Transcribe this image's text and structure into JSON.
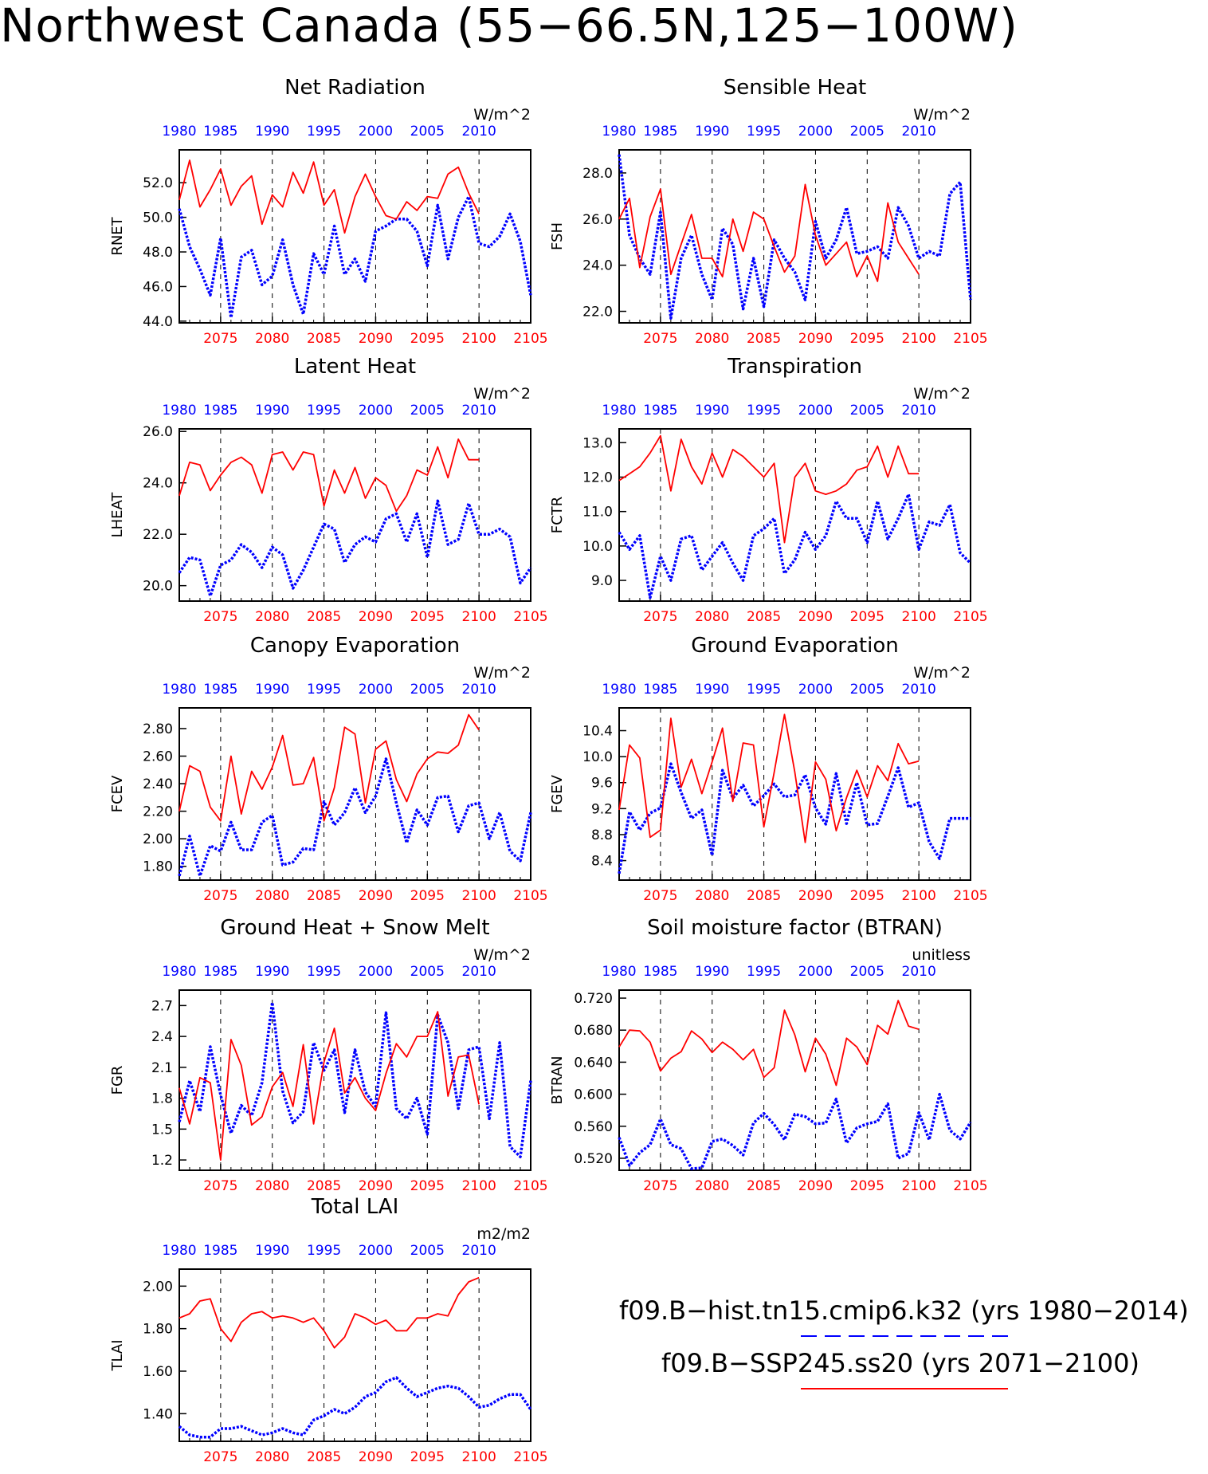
{
  "title": "Northwest Canada (55−66.5N,125−100W)",
  "colors": {
    "hist": "#0000ff",
    "future": "#ff0000",
    "axis": "#000000"
  },
  "legend": [
    {
      "label": "f09.B−hist.tn15.cmip6.k32 (yrs 1980−2014)",
      "color": "#0000ff",
      "style": "dashed"
    },
    {
      "label": "f09.B−SSP245.ss20 (yrs 2071−2100)",
      "color": "#ff0000",
      "style": "solid"
    }
  ],
  "chart_data": [
    {
      "type": "line",
      "title": "Net Radiation",
      "ylabel": "RNET",
      "units": "W/m^2",
      "top_ticks": [
        "1980",
        "1985",
        "1990",
        "1995",
        "2000",
        "2005",
        "2010"
      ],
      "bottom_ticks": [
        "2075",
        "2080",
        "2085",
        "2090",
        "2095",
        "2100",
        "2105"
      ],
      "yticks": [
        "44.0",
        "46.0",
        "48.0",
        "50.0",
        "52.0"
      ],
      "ylim": [
        43.9,
        53.9
      ],
      "series": [
        {
          "role": "hist",
          "x_start": 1980,
          "values": [
            50.5,
            48.3,
            47.0,
            45.5,
            48.8,
            44.2,
            47.7,
            48.1,
            46.1,
            46.6,
            48.7,
            46.1,
            44.4,
            47.9,
            46.7,
            49.5,
            46.7,
            47.6,
            46.3,
            49.2,
            49.5,
            49.9,
            49.9,
            49.2,
            47.2,
            50.7,
            47.6,
            50.0,
            51.2,
            48.5,
            48.3,
            48.9,
            50.2,
            48.6,
            45.5
          ]
        },
        {
          "role": "future",
          "x_start": 2071,
          "values": [
            51.0,
            53.3,
            50.6,
            51.6,
            52.8,
            50.7,
            51.8,
            52.4,
            49.6,
            51.3,
            50.6,
            52.6,
            51.4,
            53.2,
            50.7,
            51.6,
            49.1,
            51.2,
            52.5,
            51.2,
            50.1,
            49.9,
            50.9,
            50.4,
            51.2,
            51.1,
            52.5,
            52.9,
            51.4,
            50.2
          ]
        }
      ]
    },
    {
      "type": "line",
      "title": "Sensible Heat",
      "ylabel": "FSH",
      "units": "W/m^2",
      "top_ticks": [
        "1980",
        "1985",
        "1990",
        "1995",
        "2000",
        "2005",
        "2010"
      ],
      "bottom_ticks": [
        "2075",
        "2080",
        "2085",
        "2090",
        "2095",
        "2100",
        "2105"
      ],
      "yticks": [
        "22.0",
        "24.0",
        "26.0",
        "28.0"
      ],
      "ylim": [
        21.5,
        29.0
      ],
      "series": [
        {
          "role": "hist",
          "x_start": 1980,
          "values": [
            28.8,
            25.3,
            24.3,
            23.6,
            26.3,
            21.7,
            24.3,
            25.3,
            23.6,
            22.5,
            25.6,
            24.9,
            22.1,
            24.3,
            22.2,
            25.1,
            24.3,
            23.7,
            22.5,
            25.9,
            24.3,
            25.1,
            26.5,
            24.5,
            24.6,
            24.8,
            24.3,
            26.5,
            25.7,
            24.3,
            24.6,
            24.4,
            27.1,
            27.6,
            22.5
          ]
        },
        {
          "role": "future",
          "x_start": 2071,
          "values": [
            26.0,
            26.9,
            23.9,
            26.1,
            27.3,
            23.6,
            24.9,
            26.2,
            24.3,
            24.3,
            23.5,
            26.0,
            24.6,
            26.3,
            26.0,
            24.8,
            23.7,
            24.4,
            27.5,
            25.3,
            24.0,
            24.5,
            25.0,
            23.5,
            24.4,
            23.3,
            26.7,
            25.0,
            24.3,
            23.6
          ]
        }
      ]
    },
    {
      "type": "line",
      "title": "Latent Heat",
      "ylabel": "LHEAT",
      "units": "W/m^2",
      "top_ticks": [
        "1980",
        "1985",
        "1990",
        "1995",
        "2000",
        "2005",
        "2010"
      ],
      "bottom_ticks": [
        "2075",
        "2080",
        "2085",
        "2090",
        "2095",
        "2100",
        "2105"
      ],
      "yticks": [
        "20.0",
        "22.0",
        "24.0",
        "26.0"
      ],
      "ylim": [
        19.4,
        26.1
      ],
      "series": [
        {
          "role": "hist",
          "x_start": 1980,
          "values": [
            20.5,
            21.1,
            21.0,
            19.6,
            20.8,
            21.0,
            21.6,
            21.3,
            20.7,
            21.5,
            21.2,
            19.9,
            20.6,
            21.5,
            22.4,
            22.2,
            20.9,
            21.6,
            21.9,
            21.7,
            22.6,
            22.8,
            21.7,
            22.8,
            21.1,
            23.3,
            21.6,
            21.8,
            23.2,
            22.0,
            22.0,
            22.2,
            21.9,
            20.1,
            20.7
          ]
        },
        {
          "role": "future",
          "x_start": 2071,
          "values": [
            23.5,
            24.8,
            24.7,
            23.7,
            24.3,
            24.8,
            25.0,
            24.7,
            23.6,
            25.1,
            25.2,
            24.5,
            25.2,
            25.1,
            23.1,
            24.5,
            23.6,
            24.6,
            23.4,
            24.2,
            23.9,
            22.9,
            23.5,
            24.5,
            24.3,
            25.4,
            24.2,
            25.7,
            24.9,
            24.9
          ]
        }
      ]
    },
    {
      "type": "line",
      "title": "Transpiration",
      "ylabel": "FCTR",
      "units": "W/m^2",
      "top_ticks": [
        "1980",
        "1985",
        "1990",
        "1995",
        "2000",
        "2005",
        "2010"
      ],
      "bottom_ticks": [
        "2075",
        "2080",
        "2085",
        "2090",
        "2095",
        "2100",
        "2105"
      ],
      "yticks": [
        "9.0",
        "10.0",
        "11.0",
        "12.0",
        "13.0"
      ],
      "ylim": [
        8.4,
        13.4
      ],
      "series": [
        {
          "role": "hist",
          "x_start": 1980,
          "values": [
            10.4,
            9.9,
            10.3,
            8.5,
            9.7,
            9.0,
            10.2,
            10.3,
            9.3,
            9.7,
            10.1,
            9.5,
            9.0,
            10.3,
            10.5,
            10.8,
            9.2,
            9.6,
            10.4,
            9.9,
            10.3,
            11.3,
            10.8,
            10.8,
            10.1,
            11.3,
            10.2,
            10.8,
            11.5,
            9.9,
            10.7,
            10.6,
            11.2,
            9.8,
            9.5
          ]
        },
        {
          "role": "future",
          "x_start": 2071,
          "values": [
            11.9,
            12.1,
            12.3,
            12.7,
            13.2,
            11.6,
            13.1,
            12.3,
            11.8,
            12.7,
            12.0,
            12.8,
            12.6,
            12.3,
            12.0,
            12.4,
            10.1,
            12.0,
            12.4,
            11.6,
            11.5,
            11.6,
            11.8,
            12.2,
            12.3,
            12.9,
            12.0,
            12.9,
            12.1,
            12.1
          ]
        }
      ]
    },
    {
      "type": "line",
      "title": "Canopy Evaporation",
      "ylabel": "FCEV",
      "units": "W/m^2",
      "top_ticks": [
        "1980",
        "1985",
        "1990",
        "1995",
        "2000",
        "2005",
        "2010"
      ],
      "bottom_ticks": [
        "2075",
        "2080",
        "2085",
        "2090",
        "2095",
        "2100",
        "2105"
      ],
      "yticks": [
        "1.80",
        "2.00",
        "2.20",
        "2.40",
        "2.60",
        "2.80"
      ],
      "ylim": [
        1.7,
        2.95
      ],
      "series": [
        {
          "role": "hist",
          "x_start": 1980,
          "values": [
            1.73,
            2.02,
            1.73,
            1.95,
            1.91,
            2.12,
            1.92,
            1.92,
            2.12,
            2.17,
            1.81,
            1.83,
            1.93,
            1.92,
            2.27,
            2.1,
            2.19,
            2.37,
            2.19,
            2.31,
            2.58,
            2.26,
            1.97,
            2.21,
            2.1,
            2.3,
            2.31,
            2.05,
            2.24,
            2.26,
            2.0,
            2.19,
            1.91,
            1.84,
            2.19
          ]
        },
        {
          "role": "future",
          "x_start": 2071,
          "values": [
            2.2,
            2.53,
            2.49,
            2.23,
            2.13,
            2.6,
            2.18,
            2.49,
            2.36,
            2.52,
            2.75,
            2.39,
            2.4,
            2.59,
            2.13,
            2.37,
            2.81,
            2.76,
            2.26,
            2.65,
            2.71,
            2.43,
            2.27,
            2.47,
            2.58,
            2.63,
            2.62,
            2.68,
            2.9,
            2.79
          ]
        }
      ]
    },
    {
      "type": "line",
      "title": "Ground Evaporation",
      "ylabel": "FGEV",
      "units": "W/m^2",
      "top_ticks": [
        "1980",
        "1985",
        "1990",
        "1995",
        "2000",
        "2005",
        "2010"
      ],
      "bottom_ticks": [
        "2075",
        "2080",
        "2085",
        "2090",
        "2095",
        "2100",
        "2105"
      ],
      "yticks": [
        "8.4",
        "8.8",
        "9.2",
        "9.6",
        "10.0",
        "10.4"
      ],
      "ylim": [
        8.1,
        10.75
      ],
      "series": [
        {
          "role": "hist",
          "x_start": 1980,
          "values": [
            8.2,
            9.15,
            8.87,
            9.13,
            9.21,
            9.89,
            9.45,
            9.05,
            9.18,
            8.48,
            9.79,
            9.36,
            9.56,
            9.24,
            9.4,
            9.58,
            9.38,
            9.41,
            9.72,
            9.21,
            8.96,
            9.74,
            8.97,
            9.6,
            8.95,
            8.97,
            9.39,
            9.83,
            9.22,
            9.29,
            8.69,
            8.43,
            9.05,
            9.05,
            9.05
          ]
        },
        {
          "role": "future",
          "x_start": 2071,
          "values": [
            9.18,
            10.18,
            9.98,
            8.76,
            8.87,
            10.59,
            9.53,
            9.96,
            9.43,
            9.92,
            10.44,
            9.31,
            10.21,
            10.18,
            8.92,
            9.76,
            10.65,
            9.76,
            8.68,
            9.92,
            9.65,
            8.86,
            9.37,
            9.79,
            9.38,
            9.86,
            9.63,
            10.2,
            9.89,
            9.93
          ]
        }
      ]
    },
    {
      "type": "line",
      "title": "Ground Heat + Snow Melt",
      "ylabel": "FGR",
      "units": "W/m^2",
      "top_ticks": [
        "1980",
        "1985",
        "1990",
        "1995",
        "2000",
        "2005",
        "2010"
      ],
      "bottom_ticks": [
        "2075",
        "2080",
        "2085",
        "2090",
        "2095",
        "2100",
        "2105"
      ],
      "yticks": [
        "1.2",
        "1.5",
        "1.8",
        "2.1",
        "2.4",
        "2.7"
      ],
      "ylim": [
        1.1,
        2.85
      ],
      "series": [
        {
          "role": "hist",
          "x_start": 1980,
          "values": [
            1.57,
            1.97,
            1.67,
            2.3,
            1.83,
            1.46,
            1.73,
            1.63,
            1.95,
            2.73,
            1.87,
            1.56,
            1.67,
            2.34,
            2.07,
            2.27,
            1.66,
            2.27,
            1.86,
            1.72,
            2.63,
            1.7,
            1.6,
            1.8,
            1.45,
            2.61,
            2.34,
            1.7,
            2.27,
            2.3,
            1.6,
            2.34,
            1.33,
            1.23,
            1.97
          ]
        },
        {
          "role": "future",
          "x_start": 2071,
          "values": [
            1.9,
            1.55,
            2.0,
            1.95,
            1.2,
            2.37,
            2.12,
            1.54,
            1.62,
            1.91,
            2.05,
            1.72,
            2.32,
            1.55,
            2.15,
            2.48,
            1.85,
            2.0,
            1.8,
            1.68,
            2.04,
            2.33,
            2.2,
            2.4,
            2.4,
            2.64,
            1.82,
            2.2,
            2.22,
            1.74
          ]
        }
      ]
    },
    {
      "type": "line",
      "title": "Soil moisture factor (BTRAN)",
      "ylabel": "BTRAN",
      "units": "unitless",
      "top_ticks": [
        "1980",
        "1985",
        "1990",
        "1995",
        "2000",
        "2005",
        "2010"
      ],
      "bottom_ticks": [
        "2075",
        "2080",
        "2085",
        "2090",
        "2095",
        "2100",
        "2105"
      ],
      "yticks": [
        "0.520",
        "0.560",
        "0.600",
        "0.640",
        "0.680",
        "0.720"
      ],
      "ylim": [
        0.505,
        0.73
      ],
      "series": [
        {
          "role": "hist",
          "x_start": 1980,
          "values": [
            0.546,
            0.511,
            0.527,
            0.537,
            0.569,
            0.537,
            0.532,
            0.507,
            0.508,
            0.541,
            0.544,
            0.536,
            0.524,
            0.564,
            0.576,
            0.562,
            0.543,
            0.575,
            0.572,
            0.563,
            0.564,
            0.594,
            0.539,
            0.558,
            0.563,
            0.566,
            0.588,
            0.52,
            0.526,
            0.577,
            0.543,
            0.6,
            0.555,
            0.544,
            0.565
          ]
        },
        {
          "role": "future",
          "x_start": 2071,
          "values": [
            0.659,
            0.68,
            0.679,
            0.665,
            0.629,
            0.645,
            0.653,
            0.679,
            0.669,
            0.652,
            0.665,
            0.656,
            0.643,
            0.656,
            0.621,
            0.633,
            0.705,
            0.674,
            0.628,
            0.67,
            0.65,
            0.611,
            0.67,
            0.659,
            0.637,
            0.686,
            0.675,
            0.717,
            0.685,
            0.681
          ]
        }
      ]
    },
    {
      "type": "line",
      "title": "Total LAI",
      "ylabel": "TLAI",
      "units": "m2/m2",
      "top_ticks": [
        "1980",
        "1985",
        "1990",
        "1995",
        "2000",
        "2005",
        "2010"
      ],
      "bottom_ticks": [
        "2075",
        "2080",
        "2085",
        "2090",
        "2095",
        "2100",
        "2105"
      ],
      "yticks": [
        "1.40",
        "1.60",
        "1.80",
        "2.00"
      ],
      "ylim": [
        1.27,
        2.08
      ],
      "series": [
        {
          "role": "hist",
          "x_start": 1980,
          "values": [
            1.34,
            1.3,
            1.29,
            1.29,
            1.33,
            1.33,
            1.34,
            1.32,
            1.3,
            1.31,
            1.33,
            1.31,
            1.3,
            1.37,
            1.39,
            1.42,
            1.4,
            1.43,
            1.48,
            1.5,
            1.55,
            1.57,
            1.52,
            1.48,
            1.5,
            1.52,
            1.53,
            1.52,
            1.48,
            1.43,
            1.44,
            1.47,
            1.49,
            1.49,
            1.42
          ]
        },
        {
          "role": "future",
          "x_start": 2071,
          "values": [
            1.85,
            1.87,
            1.93,
            1.94,
            1.8,
            1.74,
            1.83,
            1.87,
            1.88,
            1.85,
            1.86,
            1.85,
            1.83,
            1.85,
            1.79,
            1.71,
            1.76,
            1.87,
            1.85,
            1.82,
            1.84,
            1.79,
            1.79,
            1.85,
            1.85,
            1.87,
            1.86,
            1.96,
            2.02,
            2.04
          ]
        }
      ]
    }
  ]
}
